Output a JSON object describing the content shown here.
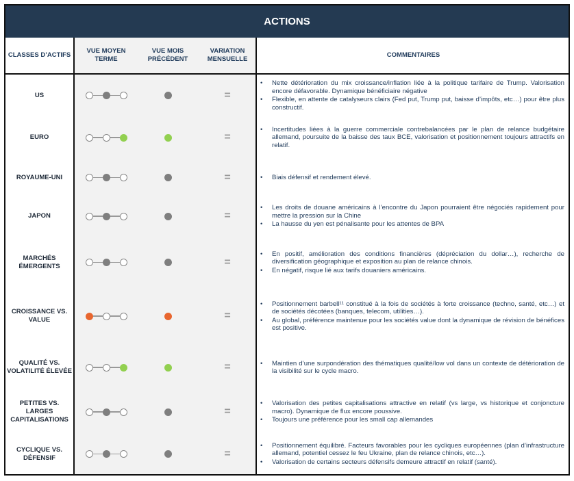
{
  "title": "ACTIONS",
  "headers": {
    "classes": "CLASSES D’ACTIFS",
    "moyen": "VUE MOYEN TERME",
    "mois": "VUE MOIS PRÉCÉDENT",
    "variation": "VARIATION MENSUELLE",
    "commentaires": "COMMENTAIRES"
  },
  "colors": {
    "header": "#243a52",
    "neutral": "#7f7f7f",
    "positive": "#92d050",
    "negative": "#e8662f"
  },
  "rows": [
    {
      "name": "US",
      "view": 1,
      "color": "#7f7f7f",
      "prev": "#7f7f7f",
      "variation": "=",
      "comments": [
        "Nette détérioration du mix croissance/inflation liée à la politique tarifaire de Trump. Valorisation encore défavorable. Dynamique bénéficiaire négative",
        "Flexible, en attente de catalyseurs clairs (Fed put, Trump put, baisse d’impôts, etc…) pour être plus constructif."
      ]
    },
    {
      "name": "EURO",
      "view": 2,
      "color": "#92d050",
      "prev": "#92d050",
      "variation": "=",
      "comments": [
        "Incertitudes liées à la guerre commerciale contrebalancées par le plan de relance budgétaire allemand, poursuite de la baisse des taux BCE, valorisation et positionnement toujours attractifs en relatif."
      ]
    },
    {
      "name": "ROYAUME-UNI",
      "view": 1,
      "color": "#7f7f7f",
      "prev": "#7f7f7f",
      "variation": "=",
      "comments": [
        "Biais défensif et rendement élevé."
      ]
    },
    {
      "name": "JAPON",
      "view": 1,
      "color": "#7f7f7f",
      "prev": "#7f7f7f",
      "variation": "=",
      "comments": [
        "Les droits de douane américains à l’encontre du Japon pourraient être négociés rapidement pour mettre la pression sur la Chine",
        "La hausse du yen est pénalisante pour les attentes de BPA"
      ]
    },
    {
      "name": "MARCHÉS ÉMERGENTS",
      "view": 1,
      "color": "#7f7f7f",
      "prev": "#7f7f7f",
      "variation": "=",
      "comments": [
        "En positif, amélioration des conditions financières (dépréciation du dollar…), recherche de diversification géographique et exposition au plan de relance chinois.",
        "En négatif, risque lié aux tarifs douaniers américains."
      ]
    },
    {
      "name": "CROISSANCE VS. VALUE",
      "view": 0,
      "color": "#e8662f",
      "prev": "#e8662f",
      "variation": "=",
      "comments": [
        "Positionnement barbell¹¹ constitué à la fois de sociétés à forte croissance (techno, santé, etc…) et de sociétés décotées (banques, telecom, utilities…).",
        "Au global, préférence maintenue pour les sociétés value dont la dynamique de révision de bénéfices est positive."
      ]
    },
    {
      "name": "QUALITÉ VS. VOLATILITÉ ÉLEVÉE",
      "view": 2,
      "color": "#92d050",
      "prev": "#92d050",
      "variation": "=",
      "comments": [
        "Maintien d’une surpondération des thématiques qualité/low vol dans un contexte de détérioration de la visibilité sur le cycle macro."
      ]
    },
    {
      "name": "PETITES VS. LARGES CAPITALISATIONS",
      "view": 1,
      "color": "#7f7f7f",
      "prev": "#7f7f7f",
      "variation": "=",
      "comments": [
        "Valorisation des petites capitalisations attractive en relatif (vs large, vs historique et conjoncture macro). Dynamique de flux encore poussive.",
        "Toujours une préférence pour les small cap allemandes"
      ]
    },
    {
      "name": "CYCLIQUE VS. DÉFENSIF",
      "view": 1,
      "color": "#7f7f7f",
      "prev": "#7f7f7f",
      "variation": "=",
      "comments": [
        "Positionnement équilibré. Facteurs favorables pour les cycliques européennes (plan d’infrastructure allemand, potentiel cessez le feu Ukraine, plan de relance chinois, etc…).",
        "Valorisation de certains secteurs défensifs demeure attractif en relatif (santé)."
      ]
    }
  ]
}
